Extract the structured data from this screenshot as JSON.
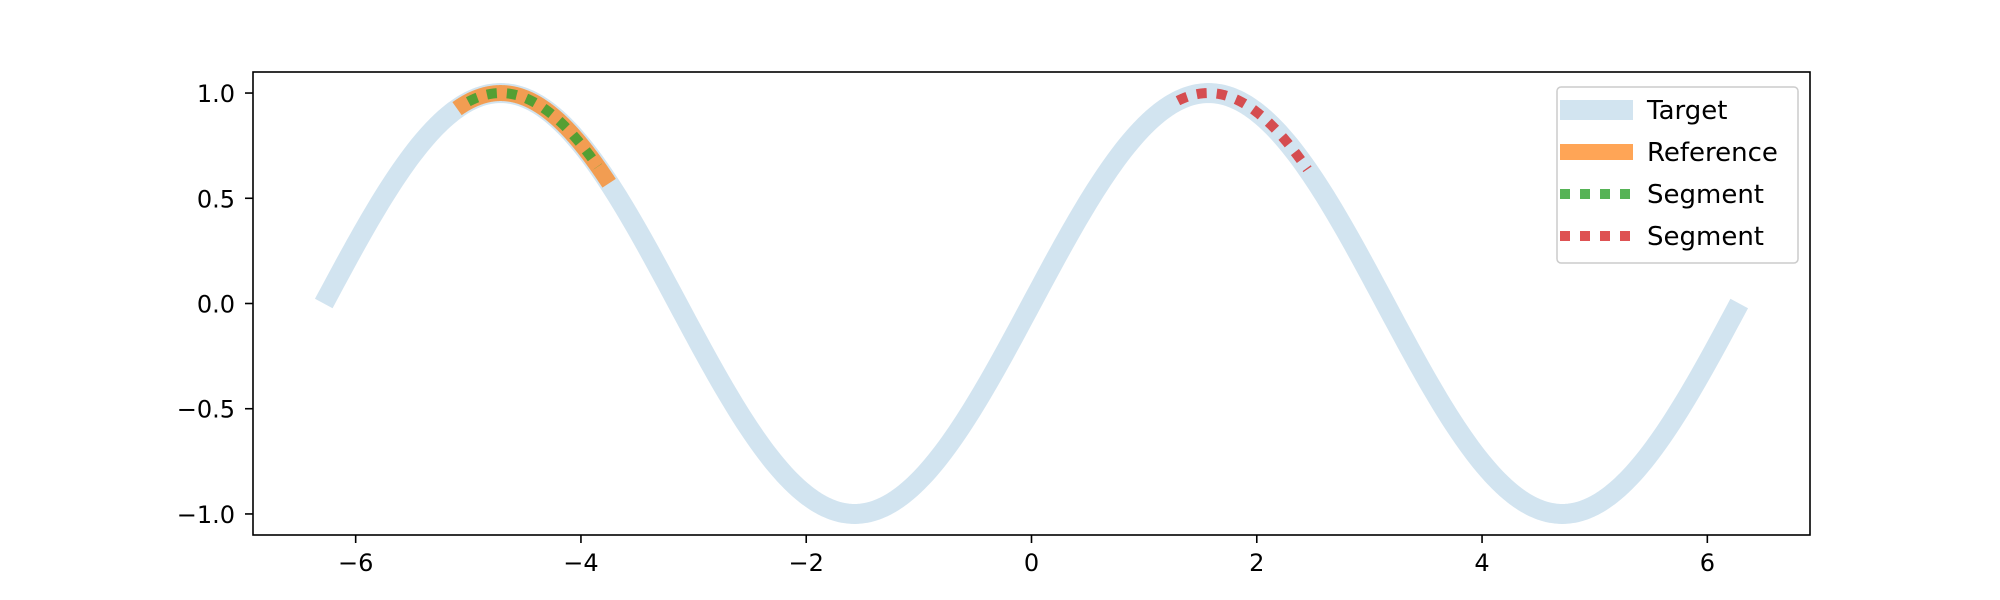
{
  "chart_data": {
    "type": "line",
    "title": "",
    "xlabel": "",
    "ylabel": "",
    "xlim": [
      -6.9115,
      6.9115
    ],
    "ylim": [
      -1.1,
      1.1
    ],
    "x_ticks": [
      {
        "value": -6,
        "label": "−6"
      },
      {
        "value": -4,
        "label": "−4"
      },
      {
        "value": -2,
        "label": "−2"
      },
      {
        "value": 0,
        "label": "0"
      },
      {
        "value": 2,
        "label": "2"
      },
      {
        "value": 4,
        "label": "4"
      },
      {
        "value": 6,
        "label": "6"
      }
    ],
    "y_ticks": [
      {
        "value": 1.0,
        "label": "1.0"
      },
      {
        "value": 0.5,
        "label": "0.5"
      },
      {
        "value": 0.0,
        "label": "0.0"
      },
      {
        "value": -0.5,
        "label": "−0.5"
      },
      {
        "value": -1.0,
        "label": "−1.0"
      }
    ],
    "grid": false,
    "legend_position": "top-right",
    "series": [
      {
        "name": "Target",
        "color": "#1f77b4",
        "opacity": 0.2,
        "style": "solid",
        "function": "sin",
        "x_range": [
          -6.2832,
          6.2832
        ]
      },
      {
        "name": "Reference",
        "color": "#ff7f0e",
        "opacity": 0.7,
        "style": "solid",
        "function": "sin",
        "x_range": [
          -5.1,
          -3.75
        ]
      },
      {
        "name": "Segment",
        "color": "#2ca02c",
        "opacity": 0.8,
        "style": "dotted",
        "function": "sin",
        "x_range": [
          -5.0,
          -3.85
        ]
      },
      {
        "name": "Segment",
        "color": "#d62728",
        "opacity": 0.8,
        "style": "dotted",
        "function": "sin",
        "x_range": [
          1.3,
          2.45
        ]
      }
    ]
  }
}
